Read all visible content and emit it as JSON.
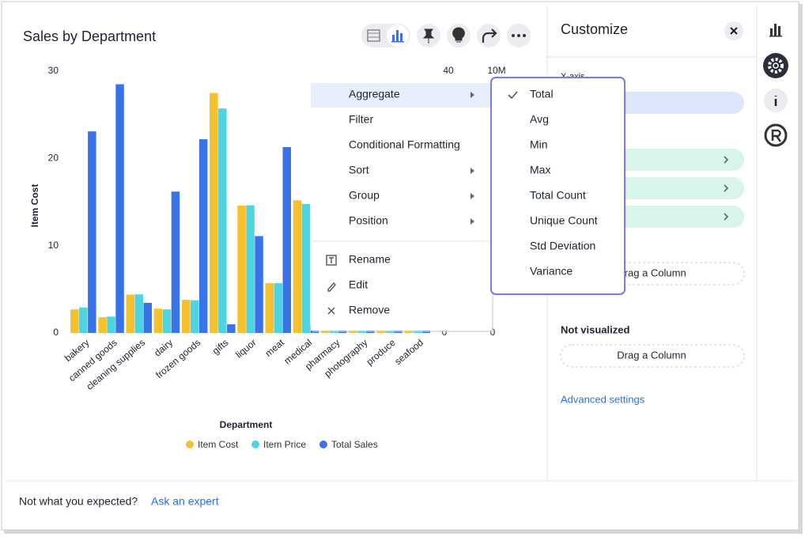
{
  "header": {
    "title": "Sales by Department"
  },
  "chart_data": {
    "type": "bar",
    "x_label": "Department",
    "y_label": "Item Cost",
    "categories": [
      "bakery",
      "canned goods",
      "cleaning supplies",
      "dairy",
      "frozen goods",
      "gifts",
      "liquor",
      "meat",
      "medical",
      "pharmacy",
      "photography",
      "produce",
      "seafood"
    ],
    "series": [
      {
        "name": "Item Cost",
        "color": "#f7c12d",
        "values": [
          2.7,
          1.8,
          4.4,
          2.8,
          3.8,
          27.5,
          14.6,
          5.7,
          15.2,
          0.3,
          0.3,
          0.3,
          0.3
        ]
      },
      {
        "name": "Item Price",
        "color": "#4fd3e0",
        "axis": "y2",
        "values": [
          3.9,
          2.5,
          5.9,
          3.6,
          5.0,
          34.3,
          19.5,
          7.6,
          19.7,
          0.4,
          0.4,
          0.4,
          0.4
        ]
      },
      {
        "name": "Total Sales",
        "color": "#3a72e8",
        "axis": "y3",
        "values": [
          7700000,
          9500000,
          1150000,
          5400000,
          7400000,
          330000,
          3700000,
          7100000,
          300000,
          100000,
          100000,
          100000,
          100000
        ]
      }
    ],
    "ylim": [
      0,
      30
    ],
    "yticks": [
      0,
      10,
      20,
      30
    ],
    "y2lim": [
      0,
      40
    ],
    "y2ticks": [
      0,
      40
    ],
    "y3lim": [
      0,
      10000000
    ],
    "y3ticks": [
      0,
      {
        "value": 10000000,
        "label": "10M"
      }
    ]
  },
  "context_menu": {
    "items": [
      "Aggregate",
      "Filter",
      "Conditional Formatting",
      "Sort",
      "Group",
      "Position"
    ],
    "actions": [
      "Rename",
      "Edit",
      "Remove"
    ]
  },
  "aggregate_submenu": {
    "items": [
      "Total",
      "Avg",
      "Min",
      "Max",
      "Total Count",
      "Unique Count",
      "Std Deviation",
      "Variance"
    ],
    "checked": 0
  },
  "customize": {
    "title": "Customize",
    "x_axis": "X-axis",
    "drop_hint": "Drag a Column",
    "not_visualized": "Not visualized",
    "drop_hint_2": "Drag a Column",
    "advanced": "Advanced settings"
  },
  "footer": {
    "prompt": "Not what you expected?",
    "link": "Ask an expert"
  }
}
